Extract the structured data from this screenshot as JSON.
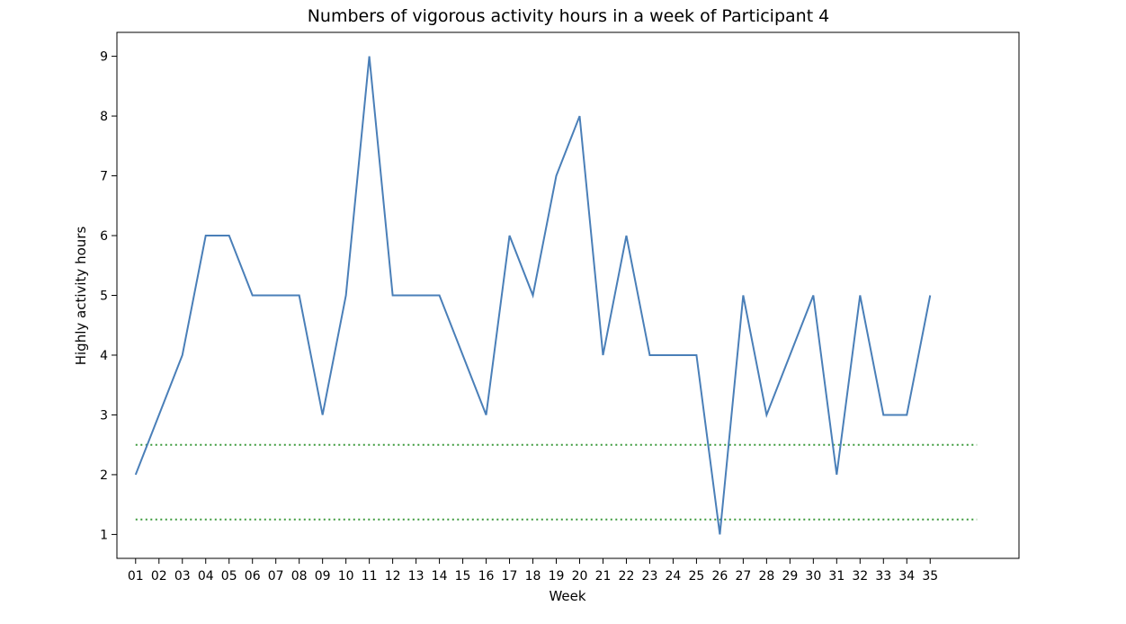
{
  "chart_data": {
    "type": "line",
    "title": "Numbers of vigorous activity hours in a week of Participant 4",
    "xlabel": "Week",
    "ylabel": "Highly activity hours",
    "categories": [
      "01",
      "02",
      "03",
      "04",
      "05",
      "06",
      "07",
      "08",
      "09",
      "10",
      "11",
      "12",
      "13",
      "14",
      "15",
      "16",
      "17",
      "18",
      "19",
      "20",
      "21",
      "22",
      "23",
      "24",
      "25",
      "26",
      "27",
      "28",
      "29",
      "30",
      "31",
      "32",
      "33",
      "34",
      "35"
    ],
    "series": [
      {
        "color": "#4a7fb8",
        "values": [
          2,
          3,
          4,
          6,
          6,
          5,
          5,
          5,
          3,
          5,
          9,
          5,
          5,
          5,
          4,
          3,
          6,
          5,
          7,
          8,
          4,
          6,
          4,
          4,
          4,
          1,
          5,
          3,
          4,
          5,
          2,
          5,
          3,
          3,
          5
        ]
      }
    ],
    "reference_lines": [
      {
        "y": 2.5,
        "x_start": 1,
        "x_end": 37,
        "color": "#3d9a3d",
        "style": "dotted"
      },
      {
        "y": 1.25,
        "x_start": 1,
        "x_end": 37,
        "color": "#3d9a3d",
        "style": "dotted"
      }
    ],
    "xlim": [
      0.2,
      38.8
    ],
    "ylim": [
      0.6,
      9.4
    ],
    "yticks": [
      1,
      2,
      3,
      4,
      5,
      6,
      7,
      8,
      9
    ],
    "grid": false,
    "legend": "none"
  }
}
